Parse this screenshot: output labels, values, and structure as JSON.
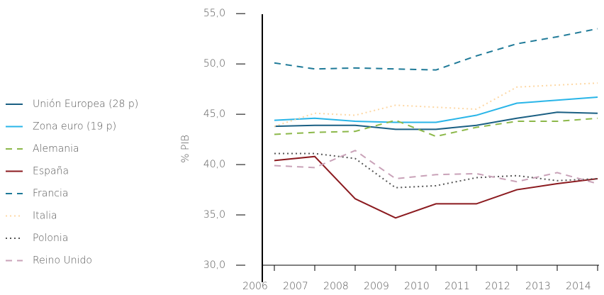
{
  "chart_data": {
    "type": "line",
    "y_label": "% PIB",
    "categories": [
      "2006",
      "2007",
      "2008",
      "2009",
      "2010",
      "2011",
      "2012",
      "2013",
      "2014"
    ],
    "ylim": [
      30,
      56
    ],
    "yticks": [
      {
        "value": 30,
        "label": "30,0"
      },
      {
        "value": 35,
        "label": "35,0"
      },
      {
        "value": 40,
        "label": "40,0"
      },
      {
        "value": 45,
        "label": "45,0"
      },
      {
        "value": 50,
        "label": "50,0"
      },
      {
        "value": 55,
        "label": "55,0"
      }
    ],
    "series": [
      {
        "name": "Unión Europea (28 p)",
        "color": "#1a5f83",
        "dash": "solid",
        "values": [
          43.8,
          43.9,
          43.9,
          43.5,
          43.5,
          43.9,
          44.6,
          45.2,
          45.1
        ]
      },
      {
        "name": "Zona euro (19 p)",
        "color": "#29b5e8",
        "dash": "solid",
        "values": [
          44.4,
          44.6,
          44.3,
          44.2,
          44.2,
          44.9,
          46.1,
          46.4,
          46.7
        ]
      },
      {
        "name": "Alemania",
        "color": "#8cb84a",
        "dash": "dashed",
        "values": [
          43.0,
          43.2,
          43.3,
          44.4,
          42.8,
          43.7,
          44.3,
          44.3,
          44.6
        ]
      },
      {
        "name": "España",
        "color": "#8b1a1f",
        "dash": "solid",
        "values": [
          40.4,
          40.8,
          36.6,
          34.7,
          36.1,
          36.1,
          37.5,
          38.1,
          38.6
        ]
      },
      {
        "name": "Francia",
        "color": "#1f7a98",
        "dash": "dashed",
        "values": [
          50.1,
          49.5,
          49.6,
          49.5,
          49.4,
          50.8,
          52.0,
          52.7,
          53.5
        ]
      },
      {
        "name": "Italia",
        "color": "#fdd8a5",
        "dash": "dotted",
        "values": [
          43.8,
          45.1,
          44.9,
          45.9,
          45.7,
          45.5,
          47.7,
          47.9,
          48.1
        ]
      },
      {
        "name": "Polonia",
        "color": "#555555",
        "dash": "dotted",
        "values": [
          41.1,
          41.1,
          40.6,
          37.7,
          37.9,
          38.7,
          38.9,
          38.4,
          38.6
        ]
      },
      {
        "name": "Reino Unido",
        "color": "#c9a2b8",
        "dash": "dashed",
        "values": [
          39.9,
          39.7,
          41.4,
          38.6,
          39.0,
          39.1,
          38.3,
          39.2,
          38.1
        ]
      }
    ]
  }
}
